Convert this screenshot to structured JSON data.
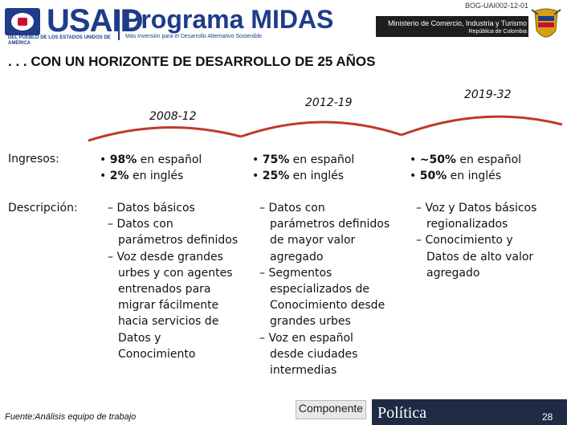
{
  "header": {
    "doc_code": "BOG-UAI002-12-01",
    "usaid_wordmark": "USAID",
    "usaid_tagline": "DEL PUEBLO DE LOS ESTADOS UNIDOS DE AMÉRICA",
    "program_title": "Programa MIDAS",
    "program_subtitle": "Más Inversión para el Desarrollo Alternativo Sostenible",
    "ministry_line1": "Ministerio de Comercio, Industria y Turismo",
    "ministry_line2": "República de Colombia"
  },
  "slide": {
    "title": ". . . CON UN HORIZONTE DE DESARROLLO DE 25 AÑOS",
    "periods": [
      "2008-12",
      "2012-19",
      "2019-32"
    ],
    "row_labels": {
      "ingresos": "Ingresos:",
      "descripcion": "Descripción:"
    },
    "ingresos": [
      {
        "a_value": "98%",
        "a_text": " en español",
        "b_value": "2%",
        "b_text": " en inglés"
      },
      {
        "a_value": "75%",
        "a_text": " en español",
        "b_value": "25%",
        "b_text": " en inglés"
      },
      {
        "a_value": "~50%",
        "a_text": " en español",
        "b_value": "50%",
        "b_text": " en inglés"
      }
    ],
    "descriptions": [
      {
        "i1": "– Datos básicos",
        "i2a": "– Datos con",
        "i2b": "parámetros definidos",
        "i3a": "– Voz desde grandes",
        "i3b": "urbes y con agentes",
        "i3c": "entrenados para",
        "i3d": "migrar fácilmente",
        "i3e": "hacia servicios de",
        "i3f": "Datos y",
        "i3g": "Conocimiento"
      },
      {
        "i1a": "– Datos con",
        "i1b": "parámetros definidos",
        "i1c": "de mayor valor",
        "i1d": "agregado",
        "i2a": "– Segmentos",
        "i2b": "especializados de",
        "i2c": "Conocimiento desde",
        "i2d": "grandes urbes",
        "i3a": "– Voz en español",
        "i3b": "desde ciudades",
        "i3c": "intermedias"
      },
      {
        "i1a": "– Voz y Datos básicos",
        "i1b": "regionalizados",
        "i2a": "– Conocimiento y",
        "i2b": "Datos de alto valor",
        "i2c": "agregado"
      }
    ]
  },
  "footer": {
    "source": "Fuente:Análisis equipo de trabajo",
    "componente_label": "Componente",
    "politica_label": "Política",
    "page_number": "28"
  },
  "colors": {
    "brand_blue": "#1f3b8a",
    "arc_red": "#c0392b",
    "footer_navy": "#1f2a44"
  }
}
